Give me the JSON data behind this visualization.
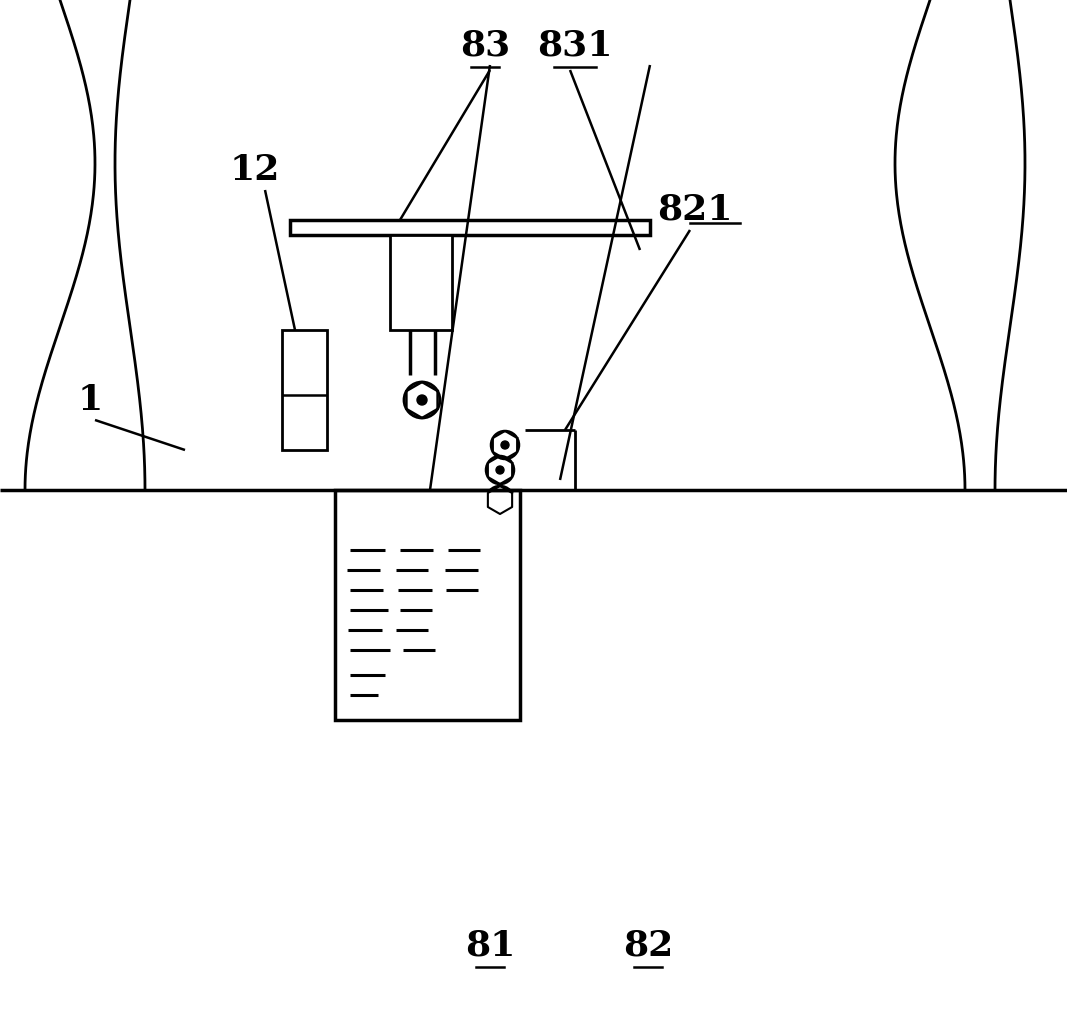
{
  "bg_color": "#ffffff",
  "line_color": "#000000",
  "fig_width": 10.67,
  "fig_height": 10.1,
  "dpi": 100
}
